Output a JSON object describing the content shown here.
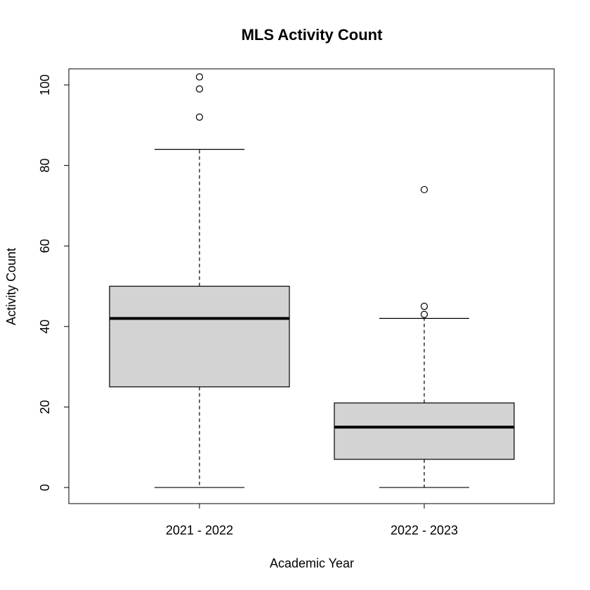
{
  "chart_data": {
    "type": "boxplot",
    "title": "MLS Activity Count",
    "xlabel": "Academic Year",
    "ylabel": "Activity Count",
    "ylim": [
      -4,
      104
    ],
    "yticks": [
      0,
      20,
      40,
      60,
      80,
      100
    ],
    "categories": [
      "2021 - 2022",
      "2022 - 2023"
    ],
    "boxes": [
      {
        "category": "2021 - 2022",
        "whisker_low": 0,
        "q1": 25,
        "median": 42,
        "q3": 50,
        "whisker_high": 84,
        "outliers": [
          92,
          99,
          102
        ]
      },
      {
        "category": "2022 - 2023",
        "whisker_low": 0,
        "q1": 7,
        "median": 15,
        "q3": 21,
        "whisker_high": 42,
        "outliers": [
          43,
          45,
          74
        ]
      }
    ],
    "grid": false,
    "colors": {
      "box_fill": "#d3d3d3",
      "stroke": "#000000",
      "background": "#ffffff"
    }
  }
}
